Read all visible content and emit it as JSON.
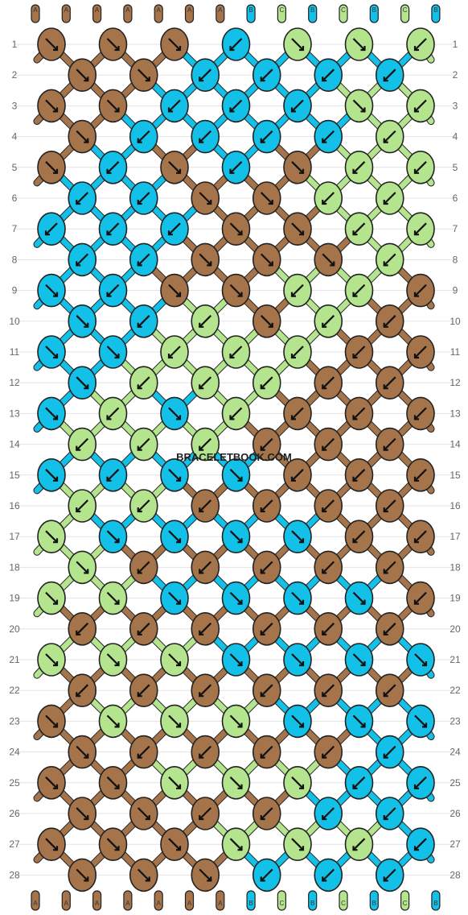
{
  "site": "BRACELETBOOK.COM",
  "colors": {
    "A": "#a5744a",
    "B": "#13c0e8",
    "C": "#b4e58e"
  },
  "strands": [
    "A",
    "A",
    "A",
    "A",
    "A",
    "A",
    "A",
    "B",
    "C",
    "B",
    "C",
    "B",
    "C",
    "B"
  ],
  "rows": [
    [
      {
        "c": "A",
        "d": "r"
      },
      {
        "c": "A",
        "d": "r"
      },
      {
        "c": "A",
        "d": "r"
      },
      {
        "c": "B",
        "d": "l"
      },
      {
        "c": "C",
        "d": "r"
      },
      {
        "c": "C",
        "d": "r"
      },
      {
        "c": "C",
        "d": "l"
      }
    ],
    [
      {
        "c": "A",
        "d": "r"
      },
      {
        "c": "A",
        "d": "r"
      },
      {
        "c": "B",
        "d": "l"
      },
      {
        "c": "B",
        "d": "l"
      },
      {
        "c": "B",
        "d": "l"
      },
      {
        "c": "B",
        "d": "l"
      }
    ],
    [
      {
        "c": "A",
        "d": "r"
      },
      {
        "c": "A",
        "d": "r"
      },
      {
        "c": "B",
        "d": "l"
      },
      {
        "c": "B",
        "d": "l"
      },
      {
        "c": "B",
        "d": "l"
      },
      {
        "c": "C",
        "d": "r"
      },
      {
        "c": "C",
        "d": "l"
      }
    ],
    [
      {
        "c": "A",
        "d": "r"
      },
      {
        "c": "B",
        "d": "l"
      },
      {
        "c": "B",
        "d": "l"
      },
      {
        "c": "B",
        "d": "l"
      },
      {
        "c": "B",
        "d": "l"
      },
      {
        "c": "C",
        "d": "l"
      }
    ],
    [
      {
        "c": "A",
        "d": "r"
      },
      {
        "c": "B",
        "d": "l"
      },
      {
        "c": "A",
        "d": "r"
      },
      {
        "c": "B",
        "d": "l"
      },
      {
        "c": "A",
        "d": "r"
      },
      {
        "c": "C",
        "d": "l"
      },
      {
        "c": "C",
        "d": "l"
      }
    ],
    [
      {
        "c": "B",
        "d": "l"
      },
      {
        "c": "B",
        "d": "l"
      },
      {
        "c": "A",
        "d": "r"
      },
      {
        "c": "A",
        "d": "r"
      },
      {
        "c": "C",
        "d": "l"
      },
      {
        "c": "C",
        "d": "l"
      }
    ],
    [
      {
        "c": "B",
        "d": "l"
      },
      {
        "c": "B",
        "d": "l"
      },
      {
        "c": "B",
        "d": "l"
      },
      {
        "c": "A",
        "d": "r"
      },
      {
        "c": "A",
        "d": "r"
      },
      {
        "c": "C",
        "d": "l"
      },
      {
        "c": "C",
        "d": "l"
      }
    ],
    [
      {
        "c": "B",
        "d": "l"
      },
      {
        "c": "B",
        "d": "l"
      },
      {
        "c": "A",
        "d": "r"
      },
      {
        "c": "A",
        "d": "r"
      },
      {
        "c": "A",
        "d": "r"
      },
      {
        "c": "C",
        "d": "l"
      }
    ],
    [
      {
        "c": "B",
        "d": "r"
      },
      {
        "c": "B",
        "d": "l"
      },
      {
        "c": "A",
        "d": "r"
      },
      {
        "c": "A",
        "d": "r"
      },
      {
        "c": "C",
        "d": "l"
      },
      {
        "c": "C",
        "d": "l"
      },
      {
        "c": "A",
        "d": "l"
      }
    ],
    [
      {
        "c": "B",
        "d": "r"
      },
      {
        "c": "B",
        "d": "l"
      },
      {
        "c": "C",
        "d": "l"
      },
      {
        "c": "A",
        "d": "r"
      },
      {
        "c": "C",
        "d": "l"
      },
      {
        "c": "A",
        "d": "l"
      }
    ],
    [
      {
        "c": "B",
        "d": "r"
      },
      {
        "c": "B",
        "d": "r"
      },
      {
        "c": "C",
        "d": "l"
      },
      {
        "c": "C",
        "d": "l"
      },
      {
        "c": "C",
        "d": "l"
      },
      {
        "c": "A",
        "d": "l"
      },
      {
        "c": "A",
        "d": "l"
      }
    ],
    [
      {
        "c": "B",
        "d": "r"
      },
      {
        "c": "C",
        "d": "l"
      },
      {
        "c": "C",
        "d": "l"
      },
      {
        "c": "C",
        "d": "l"
      },
      {
        "c": "A",
        "d": "l"
      },
      {
        "c": "A",
        "d": "l"
      }
    ],
    [
      {
        "c": "B",
        "d": "r"
      },
      {
        "c": "C",
        "d": "l"
      },
      {
        "c": "B",
        "d": "r"
      },
      {
        "c": "C",
        "d": "l"
      },
      {
        "c": "A",
        "d": "l"
      },
      {
        "c": "A",
        "d": "l"
      },
      {
        "c": "A",
        "d": "l"
      }
    ],
    [
      {
        "c": "C",
        "d": "l"
      },
      {
        "c": "C",
        "d": "l"
      },
      {
        "c": "C",
        "d": "l"
      },
      {
        "c": "A",
        "d": "l"
      },
      {
        "c": "A",
        "d": "l"
      },
      {
        "c": "A",
        "d": "l"
      }
    ],
    [
      {
        "c": "B",
        "d": "r"
      },
      {
        "c": "B",
        "d": "l"
      },
      {
        "c": "B",
        "d": "r"
      },
      {
        "c": "B",
        "d": "r"
      },
      {
        "c": "A",
        "d": "l"
      },
      {
        "c": "A",
        "d": "l"
      },
      {
        "c": "A",
        "d": "l"
      }
    ],
    [
      {
        "c": "C",
        "d": "l"
      },
      {
        "c": "C",
        "d": "l"
      },
      {
        "c": "A",
        "d": "l"
      },
      {
        "c": "A",
        "d": "l"
      },
      {
        "c": "A",
        "d": "l"
      },
      {
        "c": "A",
        "d": "l"
      }
    ],
    [
      {
        "c": "C",
        "d": "r"
      },
      {
        "c": "B",
        "d": "r"
      },
      {
        "c": "B",
        "d": "r"
      },
      {
        "c": "B",
        "d": "r"
      },
      {
        "c": "B",
        "d": "r"
      },
      {
        "c": "A",
        "d": "l"
      },
      {
        "c": "A",
        "d": "l"
      }
    ],
    [
      {
        "c": "C",
        "d": "r"
      },
      {
        "c": "A",
        "d": "l"
      },
      {
        "c": "A",
        "d": "l"
      },
      {
        "c": "A",
        "d": "l"
      },
      {
        "c": "A",
        "d": "l"
      },
      {
        "c": "A",
        "d": "l"
      }
    ],
    [
      {
        "c": "C",
        "d": "r"
      },
      {
        "c": "C",
        "d": "r"
      },
      {
        "c": "B",
        "d": "r"
      },
      {
        "c": "B",
        "d": "r"
      },
      {
        "c": "B",
        "d": "r"
      },
      {
        "c": "B",
        "d": "r"
      },
      {
        "c": "A",
        "d": "l"
      }
    ],
    [
      {
        "c": "A",
        "d": "l"
      },
      {
        "c": "A",
        "d": "l"
      },
      {
        "c": "A",
        "d": "l"
      },
      {
        "c": "A",
        "d": "l"
      },
      {
        "c": "A",
        "d": "l"
      },
      {
        "c": "A",
        "d": "l"
      }
    ],
    [
      {
        "c": "C",
        "d": "r"
      },
      {
        "c": "C",
        "d": "r"
      },
      {
        "c": "C",
        "d": "r"
      },
      {
        "c": "B",
        "d": "r"
      },
      {
        "c": "B",
        "d": "r"
      },
      {
        "c": "B",
        "d": "r"
      },
      {
        "c": "B",
        "d": "r"
      }
    ],
    [
      {
        "c": "A",
        "d": "l"
      },
      {
        "c": "A",
        "d": "l"
      },
      {
        "c": "A",
        "d": "l"
      },
      {
        "c": "A",
        "d": "l"
      },
      {
        "c": "A",
        "d": "l"
      },
      {
        "c": "A",
        "d": "l"
      }
    ],
    [
      {
        "c": "A",
        "d": "r"
      },
      {
        "c": "C",
        "d": "r"
      },
      {
        "c": "C",
        "d": "r"
      },
      {
        "c": "C",
        "d": "r"
      },
      {
        "c": "B",
        "d": "r"
      },
      {
        "c": "B",
        "d": "r"
      },
      {
        "c": "B",
        "d": "r"
      }
    ],
    [
      {
        "c": "A",
        "d": "r"
      },
      {
        "c": "A",
        "d": "l"
      },
      {
        "c": "A",
        "d": "l"
      },
      {
        "c": "A",
        "d": "l"
      },
      {
        "c": "A",
        "d": "l"
      },
      {
        "c": "B",
        "d": "l"
      }
    ],
    [
      {
        "c": "A",
        "d": "r"
      },
      {
        "c": "A",
        "d": "r"
      },
      {
        "c": "C",
        "d": "r"
      },
      {
        "c": "C",
        "d": "r"
      },
      {
        "c": "C",
        "d": "r"
      },
      {
        "c": "B",
        "d": "l"
      },
      {
        "c": "B",
        "d": "l"
      }
    ],
    [
      {
        "c": "A",
        "d": "r"
      },
      {
        "c": "A",
        "d": "r"
      },
      {
        "c": "A",
        "d": "l"
      },
      {
        "c": "A",
        "d": "l"
      },
      {
        "c": "B",
        "d": "l"
      },
      {
        "c": "B",
        "d": "l"
      }
    ],
    [
      {
        "c": "A",
        "d": "r"
      },
      {
        "c": "A",
        "d": "r"
      },
      {
        "c": "A",
        "d": "r"
      },
      {
        "c": "C",
        "d": "r"
      },
      {
        "c": "C",
        "d": "r"
      },
      {
        "c": "C",
        "d": "l"
      },
      {
        "c": "B",
        "d": "l"
      }
    ],
    [
      {
        "c": "A",
        "d": "r"
      },
      {
        "c": "A",
        "d": "r"
      },
      {
        "c": "A",
        "d": "r"
      },
      {
        "c": "B",
        "d": "l"
      },
      {
        "c": "B",
        "d": "l"
      },
      {
        "c": "B",
        "d": "l"
      }
    ]
  ]
}
